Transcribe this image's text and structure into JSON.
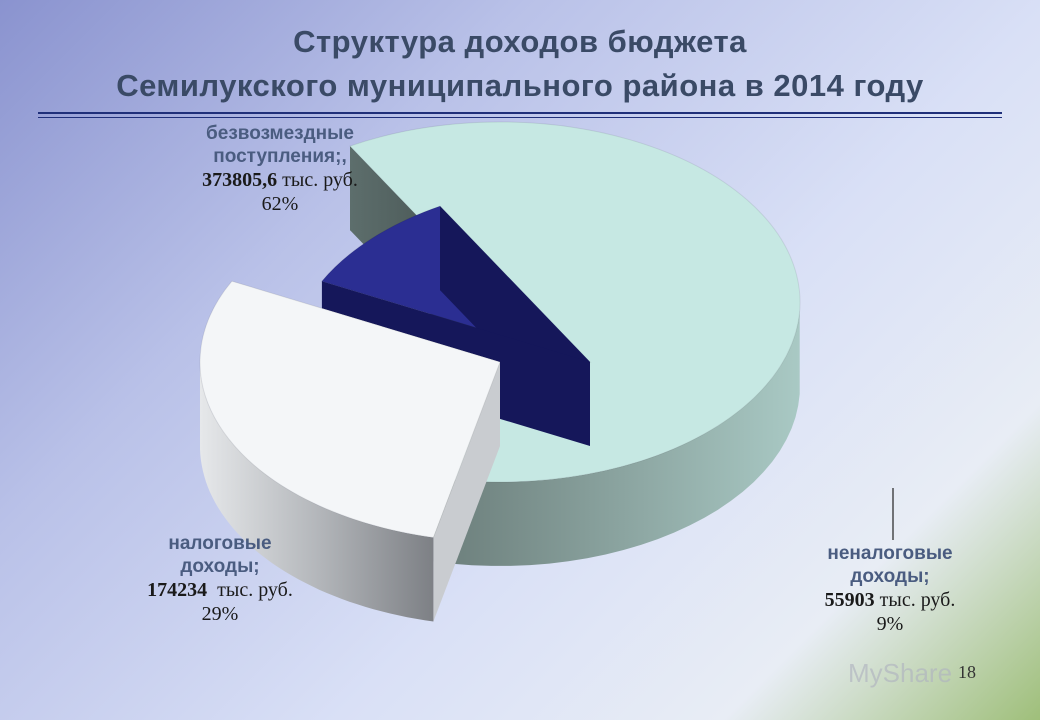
{
  "title": {
    "line1": "Структура доходов бюджета",
    "line2": "Семилукского муниципального района в 2014 году"
  },
  "page_number": "18",
  "watermark": "MyShare",
  "colors": {
    "free": "#c6e8e3",
    "tax": "#f4f6f8",
    "nontax": "#2b2e92",
    "category_label": "#4a5c80"
  },
  "chart_data": {
    "type": "pie",
    "style": "3d-exploded",
    "unit": "тыс. руб.",
    "slices": [
      {
        "category": "безвозмездные поступления;,",
        "value_text": "373805,6",
        "value": 373805.6,
        "percent_text": "62%",
        "percent": 62
      },
      {
        "category": "налоговые доходы;",
        "value_text": "174234",
        "value": 174234,
        "percent_text": "29%",
        "percent": 29
      },
      {
        "category": "неналоговые доходы;",
        "value_text": "55903",
        "value": 55903,
        "percent_text": "9%",
        "percent": 9
      }
    ]
  },
  "labels": {
    "free": {
      "cat1": "безвозмездные",
      "cat2": "поступления;,",
      "value": "373805,6",
      "unit": " тыс. руб.",
      "pct": "62%"
    },
    "tax": {
      "cat1": "налоговые",
      "cat2": "доходы;",
      "value": "174234",
      "unit": "  тыс. руб.",
      "pct": "29%"
    },
    "nontax": {
      "cat1": "неналоговые",
      "cat2": "доходы;",
      "value": "55903",
      "unit": " тыс. руб.",
      "pct": "9%"
    }
  }
}
